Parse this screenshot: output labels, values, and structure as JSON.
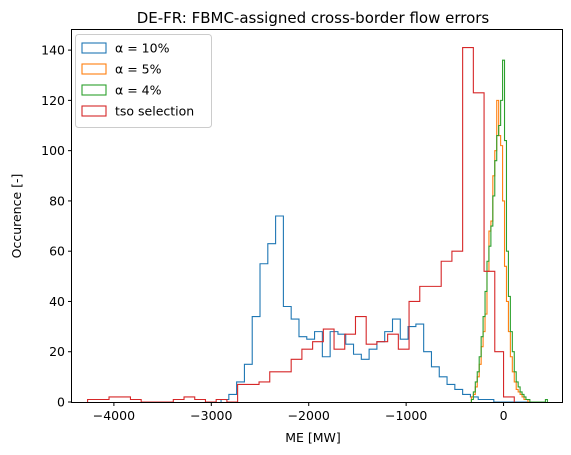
{
  "chart_data": {
    "type": "histogram-step",
    "title": "DE-FR: FBMC-assigned cross-border flow errors",
    "xlabel": "ME [MW]",
    "ylabel": "Occurence [-]",
    "xlim": [
      -4430,
      600
    ],
    "ylim": [
      0,
      148
    ],
    "xticks": [
      -4000,
      -3000,
      -2000,
      -1000,
      0
    ],
    "xtick_labels": [
      "−4000",
      "−3000",
      "−2000",
      "−1000",
      "0"
    ],
    "yticks": [
      0,
      20,
      40,
      60,
      80,
      100,
      120,
      140
    ],
    "ytick_labels": [
      "0",
      "20",
      "40",
      "60",
      "80",
      "100",
      "120",
      "140"
    ],
    "grid": false,
    "legend_position": "upper left",
    "series": [
      {
        "name": "α = 10%",
        "color": "#1f77b4",
        "edges": [
          -2900,
          -2820,
          -2740,
          -2660,
          -2580,
          -2500,
          -2420,
          -2340,
          -2260,
          -2180,
          -2100,
          -2020,
          -1940,
          -1860,
          -1780,
          -1700,
          -1620,
          -1540,
          -1460,
          -1380,
          -1300,
          -1220,
          -1140,
          -1060,
          -980,
          -900,
          -820,
          -740,
          -660,
          -580,
          -500,
          -420,
          -340,
          -260,
          -180,
          -100,
          -20,
          60,
          140,
          220,
          300
        ],
        "counts": [
          1,
          3,
          8,
          15,
          34,
          55,
          63,
          74,
          38,
          33,
          26,
          25,
          28,
          18,
          28,
          27,
          23,
          19,
          17,
          21,
          24,
          28,
          33,
          25,
          30,
          31,
          20,
          14,
          10,
          7,
          5,
          3,
          2,
          1,
          1,
          0,
          0,
          0,
          0,
          0
        ]
      },
      {
        "name": "α = 5%",
        "color": "#ff7f0e",
        "edges": [
          -330,
          -310,
          -290,
          -270,
          -250,
          -230,
          -210,
          -190,
          -170,
          -150,
          -130,
          -110,
          -90,
          -70,
          -50,
          -30,
          -10,
          10,
          30,
          50,
          70,
          90,
          110,
          130,
          150,
          170,
          190,
          210,
          230,
          250,
          270,
          290,
          310,
          330
        ],
        "counts": [
          2,
          3,
          6,
          10,
          15,
          22,
          28,
          35,
          52,
          68,
          72,
          90,
          100,
          120,
          106,
          102,
          80,
          54,
          40,
          28,
          18,
          12,
          8,
          5,
          4,
          3,
          2,
          1,
          1,
          0,
          0,
          0,
          0
        ]
      },
      {
        "name": "α = 4%",
        "color": "#2ca02c",
        "edges": [
          -330,
          -310,
          -290,
          -270,
          -250,
          -230,
          -210,
          -190,
          -170,
          -150,
          -130,
          -110,
          -90,
          -70,
          -50,
          -30,
          -10,
          10,
          30,
          50,
          70,
          90,
          110,
          130,
          150,
          170,
          190,
          210,
          230,
          250,
          270,
          290,
          310,
          330,
          350,
          370,
          390,
          410,
          430,
          450
        ],
        "counts": [
          1,
          4,
          8,
          12,
          18,
          26,
          34,
          44,
          56,
          62,
          70,
          82,
          96,
          106,
          110,
          120,
          136,
          104,
          60,
          42,
          28,
          20,
          12,
          8,
          6,
          4,
          3,
          2,
          1,
          1,
          0,
          0,
          0,
          0,
          0,
          0,
          0,
          0,
          1
        ]
      },
      {
        "name": "tso selection",
        "color": "#d62728",
        "edges": [
          -4270,
          -4160,
          -4050,
          -3940,
          -3830,
          -3720,
          -3610,
          -3500,
          -3390,
          -3280,
          -3170,
          -3060,
          -2950,
          -2840,
          -2730,
          -2620,
          -2510,
          -2400,
          -2290,
          -2180,
          -2070,
          -1960,
          -1850,
          -1740,
          -1630,
          -1520,
          -1410,
          -1300,
          -1190,
          -1080,
          -970,
          -860,
          -750,
          -640,
          -530,
          -420,
          -310,
          -200,
          -90,
          0,
          110
        ],
        "counts": [
          1,
          1,
          2,
          2,
          1,
          0,
          0,
          0,
          1,
          2,
          1,
          0,
          1,
          0,
          7,
          7,
          8,
          12,
          12,
          17,
          21,
          24,
          29,
          21,
          27,
          34,
          23,
          24,
          27,
          21,
          40,
          46,
          46,
          56,
          60,
          141,
          123,
          52,
          20,
          2
        ]
      }
    ]
  }
}
